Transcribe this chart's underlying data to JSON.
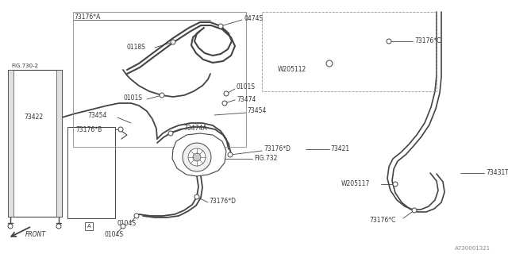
{
  "background_color": "#ffffff",
  "part_number": "A730001321",
  "lc": "#444444",
  "labels": {
    "73176A": "73176*A",
    "0474S": "0474S",
    "0118S": "0118S",
    "73422": "73422",
    "0101S_1": "0101S",
    "0101S_2": "0101S",
    "73176B": "73176*B",
    "73454_1": "73454",
    "73454_2": "73454",
    "73474": "73474",
    "73474A": "73474A",
    "73176D_1": "73176*D",
    "73176D_2": "73176*D",
    "73421": "73421",
    "FIG732": "FIG.732",
    "FIG7302": "FIG.730-2",
    "W205112": "W205112",
    "W205117": "W205117",
    "73176C_1": "73176*C",
    "73176C_2": "73176*C",
    "73431T": "73431T",
    "0104S_1": "0104S",
    "0104S_2": "0104S",
    "FRONT": "FRONT",
    "A_label": "A"
  }
}
